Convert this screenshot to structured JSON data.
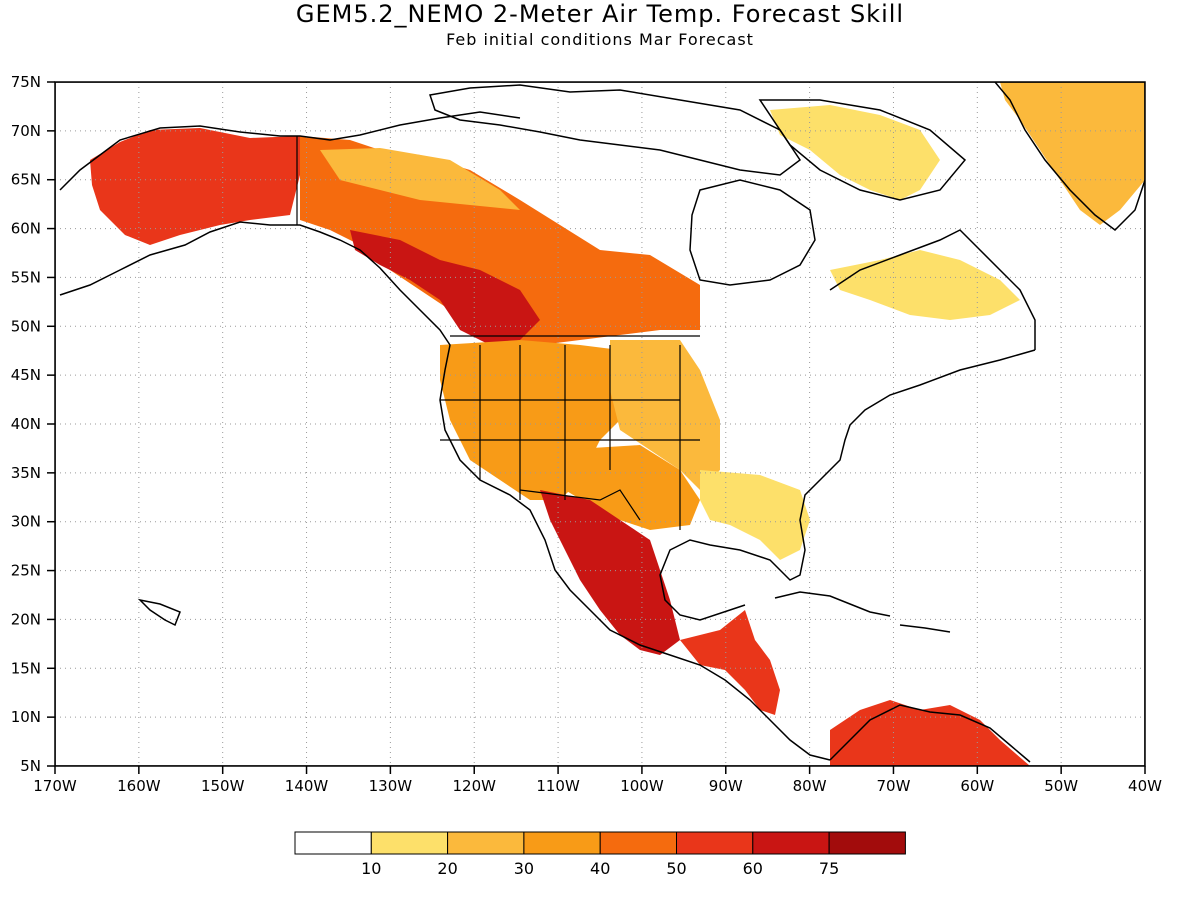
{
  "title": "GEM5.2_NEMO 2-Meter Air Temp. Forecast Skill",
  "subtitle": "Feb initial conditions  Mar Forecast",
  "map": {
    "lon_range": [
      -170,
      -40
    ],
    "lat_range": [
      5,
      75
    ],
    "grid": "dotted",
    "projection": "equirectangular",
    "y_ticks": [
      "75N",
      "70N",
      "65N",
      "60N",
      "55N",
      "50N",
      "45N",
      "40N",
      "35N",
      "30N",
      "25N",
      "20N",
      "15N",
      "10N",
      "5N"
    ],
    "x_ticks": [
      "170W",
      "160W",
      "150W",
      "140W",
      "130W",
      "120W",
      "110W",
      "100W",
      "90W",
      "80W",
      "70W",
      "60W",
      "50W",
      "40W"
    ]
  },
  "legend": {
    "labels": [
      "10",
      "20",
      "30",
      "40",
      "50",
      "60",
      "75"
    ],
    "colors": [
      "#ffffff",
      "#fde06a",
      "#fbb93c",
      "#f89b17",
      "#f56b0e",
      "#e9361a",
      "#c91513",
      "#a20c0c"
    ]
  },
  "regions": [
    {
      "name": "Alaska",
      "level": 5
    },
    {
      "name": "Western Canada",
      "level": 4
    },
    {
      "name": "Pacific Northwest Canada",
      "level": 6
    },
    {
      "name": "Northern Canada",
      "level": 2
    },
    {
      "name": "Western US",
      "level": 3
    },
    {
      "name": "Great Plains",
      "level": 2
    },
    {
      "name": "Texas / Southern Plains",
      "level": 3
    },
    {
      "name": "Mexico",
      "level": 6
    },
    {
      "name": "Central America",
      "level": 5
    },
    {
      "name": "Northern South America",
      "level": 5
    },
    {
      "name": "Greenland",
      "level": 2
    },
    {
      "name": "Eastern US",
      "level": 0
    }
  ]
}
